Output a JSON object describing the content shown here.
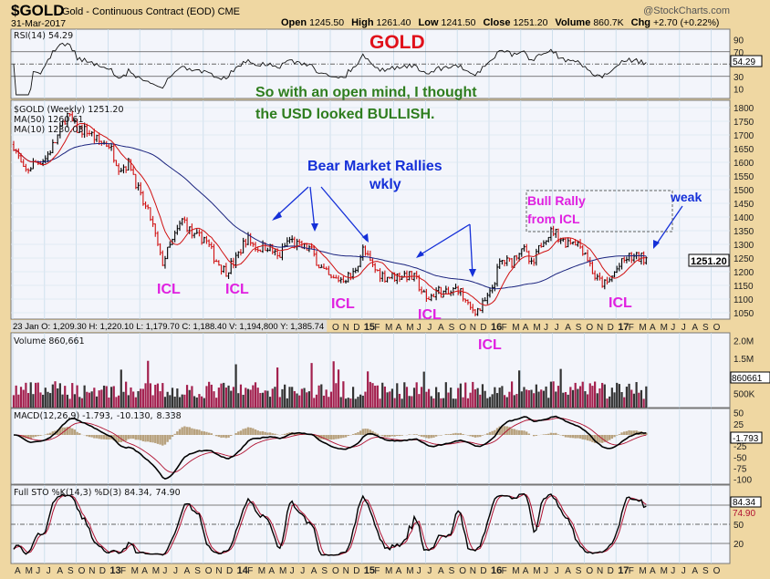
{
  "header": {
    "symbol": "$GOLD",
    "name": "Gold - Continuous Contract (EOD) CME",
    "brand": "@StockCharts.com",
    "date": "31-Mar-2017",
    "quote": [
      {
        "label": "Open",
        "value": "1245.50"
      },
      {
        "label": "High",
        "value": "1261.40"
      },
      {
        "label": "Low",
        "value": "1241.50"
      },
      {
        "label": "Close",
        "value": "1251.20"
      },
      {
        "label": "Volume",
        "value": "860.7K"
      },
      {
        "label": "Chg",
        "value": "+2.70 (+0.22%)"
      }
    ]
  },
  "annotations": {
    "title": "GOLD",
    "note_line1": "So with an open mind, I thought",
    "note_line2": "the USD looked BULLISH.",
    "bear1": "Bear Market Rallies",
    "bear2": "wkly",
    "bull1": "Bull Rally",
    "bull2": "from ICL",
    "weak": "weak",
    "icl": "ICL"
  },
  "colors": {
    "annotation_red": "#E0101A",
    "annotation_green": "#2E7D1E",
    "annotation_blue": "#1530D8",
    "annotation_magenta": "#E020E0",
    "ma50": "#1A237E",
    "ma10": "#D01010",
    "histogram": "#B8A27E",
    "volume_up": "#333333",
    "volume_down": "#A3204E"
  },
  "hover_readout": "23 Jan O: 1,209.30   H: 1,220.10   L: 1,179.70   C: 1,188.40   V: 1,194,800   Y: 1,385.74",
  "chart_data": [
    {
      "type": "line",
      "panel": "rsi",
      "legend": "RSI(14) 54.29",
      "last_value": "54.29",
      "yticks": [
        "90",
        "70",
        "30",
        "10"
      ],
      "reference_lines": [
        70,
        50,
        30
      ]
    },
    {
      "type": "ohlc",
      "panel": "price",
      "legend": "$GOLD (Weekly) 1251.20",
      "ma50_legend": "MA(50) 1260.61",
      "ma10_legend": "MA(10) 1230.03",
      "last_value": "1251.20",
      "ylim": [
        1025,
        1825
      ],
      "yticks": [
        "1800",
        "1750",
        "1700",
        "1650",
        "1600",
        "1550",
        "1500",
        "1450",
        "1400",
        "1350",
        "1300",
        "1250",
        "1200",
        "1150",
        "1100",
        "1050"
      ],
      "monthly_close": {
        "start": "2012-04",
        "values": [
          1665,
          1560,
          1600,
          1615,
          1680,
          1775,
          1720,
          1715,
          1675,
          1665,
          1580,
          1595,
          1470,
          1390,
          1230,
          1310,
          1395,
          1325,
          1325,
          1250,
          1200,
          1245,
          1325,
          1285,
          1295,
          1250,
          1320,
          1290,
          1285,
          1215,
          1170,
          1175,
          1185,
          1280,
          1212,
          1183,
          1183,
          1190,
          1172,
          1095,
          1132,
          1115,
          1142,
          1065,
          1060,
          1116,
          1238,
          1234,
          1293,
          1215,
          1322,
          1350,
          1309,
          1317,
          1272,
          1173,
          1150,
          1210,
          1252,
          1251
        ]
      }
    },
    {
      "type": "bar",
      "panel": "volume",
      "legend": "Volume 860,661",
      "last_value": "860661",
      "yticks": [
        "2.0M",
        "1.5M",
        "500K"
      ]
    },
    {
      "type": "line",
      "panel": "macd",
      "legend_prefix": "MACD(12,26,9) -1.793,",
      "legend_signal": "-10.130,",
      "legend_hist": "8.338",
      "last_value": "-1.793",
      "yticks": [
        "50",
        "25",
        "-25",
        "-50",
        "-75",
        "-100"
      ]
    },
    {
      "type": "line",
      "panel": "stochastic",
      "legend_prefix": "Full STO %K(14,3) %D(3) 84.34,",
      "legend_d": "74.90",
      "last_k": "84.34",
      "last_d": "74.90",
      "yticks": [
        "50",
        "20"
      ]
    }
  ],
  "xaxis": {
    "months": [
      "A",
      "M",
      "J",
      "J",
      "A",
      "S",
      "O",
      "N",
      "D",
      "13",
      "F",
      "M",
      "A",
      "M",
      "J",
      "J",
      "A",
      "S",
      "O",
      "N",
      "D",
      "14",
      "F",
      "M",
      "A",
      "M",
      "J",
      "J",
      "A",
      "S",
      "O",
      "N",
      "D",
      "15",
      "F",
      "M",
      "A",
      "M",
      "J",
      "J",
      "A",
      "S",
      "O",
      "N",
      "D",
      "16",
      "F",
      "M",
      "A",
      "M",
      "J",
      "J",
      "A",
      "S",
      "O",
      "N",
      "D",
      "17",
      "F",
      "M",
      "A",
      "M",
      "J",
      "J",
      "A",
      "S",
      "O"
    ]
  }
}
